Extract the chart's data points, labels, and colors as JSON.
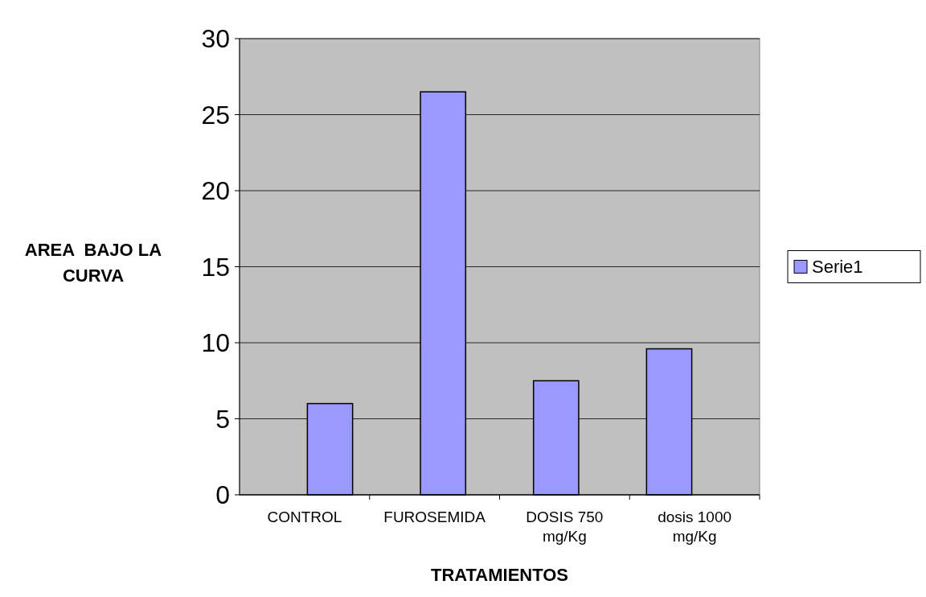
{
  "chart_data": {
    "type": "bar",
    "xlabel": "TRATAMIENTOS",
    "ylabel": "AREA  BAJO LA CURVA",
    "categories": [
      "CONTROL",
      "FUROSEMIDA",
      "DOSIS 750 mg/Kg",
      "dosis 1000 mg/Kg"
    ],
    "series": [
      {
        "name": "Serie1",
        "color": "#9999ff",
        "values": [
          6,
          26.5,
          7.5,
          9.6
        ]
      }
    ],
    "ylim": [
      0,
      30
    ],
    "yticks": [
      0,
      5,
      10,
      15,
      20,
      25,
      30
    ],
    "grid": "y",
    "legend": "right"
  }
}
